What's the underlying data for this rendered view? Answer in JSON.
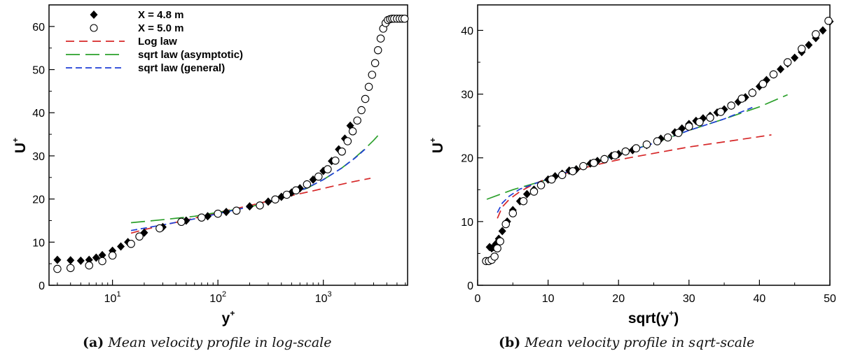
{
  "chart_data": [
    {
      "panel": "a",
      "type": "scatter",
      "x_scale": "log",
      "xlabel": "y",
      "xlabel_sup": "+",
      "ylabel": "U",
      "ylabel_sup": "+",
      "xlim": [
        2.5,
        6300
      ],
      "ylim": [
        0,
        65
      ],
      "xticks": [
        {
          "v": 10,
          "base": "10",
          "exp": "1"
        },
        {
          "v": 100,
          "base": "10",
          "exp": "2"
        },
        {
          "v": 1000,
          "base": "10",
          "exp": "3"
        }
      ],
      "yticks": [
        0,
        10,
        20,
        30,
        40,
        50,
        60
      ],
      "legend_position": "top-left",
      "series": [
        {
          "name": "X = 4.8 m",
          "style": "filled-diamond",
          "color": "#000000",
          "x": [
            3,
            4,
            5,
            6,
            7,
            8,
            10,
            12,
            14,
            20,
            30,
            50,
            80,
            120,
            200,
            300,
            400,
            500,
            600,
            800,
            1000,
            1200,
            1400,
            1600,
            1800
          ],
          "y": [
            5.9,
            5.8,
            5.7,
            5.9,
            6.4,
            7.0,
            8.0,
            9.0,
            10.0,
            12.2,
            13.5,
            15.0,
            16.0,
            17.0,
            18.3,
            19.4,
            20.5,
            21.5,
            22.5,
            24.5,
            26.5,
            28.8,
            31.5,
            34.0,
            37.0
          ]
        },
        {
          "name": "X = 5.0 m",
          "style": "open-circle",
          "color": "#000000",
          "x": [
            3,
            4,
            6,
            8,
            10,
            15,
            18,
            28,
            45,
            70,
            100,
            150,
            250,
            350,
            450,
            550,
            700,
            900,
            1100,
            1300,
            1500,
            1700,
            1900,
            2100,
            2300,
            2500,
            2700,
            2900,
            3100,
            3300,
            3500,
            3700,
            3900,
            4100,
            4300,
            4500,
            4700,
            5000,
            5300,
            5600,
            5900
          ],
          "y": [
            3.8,
            4.0,
            4.6,
            5.6,
            6.9,
            9.6,
            11.3,
            13.2,
            14.7,
            15.7,
            16.6,
            17.3,
            18.5,
            19.9,
            21.0,
            22.0,
            23.4,
            25.2,
            26.9,
            28.9,
            31.0,
            33.4,
            35.7,
            38.2,
            40.6,
            43.2,
            46.0,
            48.8,
            51.5,
            54.5,
            57.2,
            59.5,
            60.8,
            61.5,
            61.7,
            61.8,
            61.8,
            61.8,
            61.8,
            61.8,
            61.8
          ]
        },
        {
          "name": "Log law",
          "style": "dashed",
          "color": "#d62728",
          "x": [
            15,
            20,
            30,
            50,
            80,
            120,
            200,
            300,
            500,
            800,
            1200,
            2000,
            2800
          ],
          "y": [
            12.1,
            12.9,
            13.9,
            15.1,
            16.3,
            17.3,
            18.5,
            19.5,
            20.8,
            21.9,
            22.9,
            24.1,
            24.8
          ]
        },
        {
          "name": "sqrt law (asymptotic)",
          "style": "long-dash",
          "color": "#2ca02c",
          "x": [
            15,
            30,
            60,
            100,
            200,
            300,
            500,
            700,
            1000,
            1500,
            2000,
            2500,
            3000,
            3500
          ],
          "y": [
            14.5,
            15.2,
            16.0,
            16.9,
            18.1,
            19.4,
            21.2,
            22.5,
            24.5,
            27.2,
            29.6,
            31.7,
            33.6,
            35.4
          ]
        },
        {
          "name": "sqrt law (general)",
          "style": "short-dash",
          "color": "#1f3fd6",
          "x": [
            15,
            30,
            60,
            100,
            200,
            300,
            500,
            700,
            1000,
            1500,
            2000,
            2500
          ],
          "y": [
            12.7,
            14.0,
            15.4,
            16.6,
            18.2,
            19.4,
            21.2,
            22.6,
            24.5,
            27.2,
            29.5,
            31.6
          ]
        }
      ]
    },
    {
      "panel": "b",
      "type": "scatter",
      "x_scale": "linear",
      "xlabel": "sqrt(y",
      "xlabel_sup": "+",
      "xlabel_tail": ")",
      "ylabel": "U",
      "ylabel_sup": "+",
      "xlim": [
        0,
        50
      ],
      "ylim": [
        0,
        44
      ],
      "xticks": [
        0,
        10,
        20,
        30,
        40,
        50
      ],
      "yticks": [
        0,
        10,
        20,
        30,
        40
      ],
      "series": [
        {
          "name": "X = 4.8 m",
          "style": "filled-diamond",
          "color": "#000000",
          "x": [
            1.7,
            2.0,
            2.3,
            2.6,
            3.0,
            3.5,
            4.2,
            5,
            6,
            7,
            8,
            9,
            10,
            11,
            12,
            13,
            14,
            15,
            16,
            17,
            18,
            19,
            20,
            22,
            24,
            26,
            28,
            29,
            30,
            31,
            32,
            33,
            34,
            35,
            36,
            37,
            38,
            39,
            40,
            41,
            42,
            43,
            44,
            45,
            46,
            47,
            48,
            49,
            50
          ],
          "y": [
            6.0,
            5.8,
            6.0,
            6.5,
            7.3,
            8.5,
            10.0,
            11.8,
            13.2,
            14.3,
            15.0,
            15.8,
            16.6,
            17.1,
            17.5,
            18.0,
            18.2,
            18.7,
            19.1,
            19.5,
            19.8,
            20.3,
            20.6,
            21.2,
            22.0,
            23.0,
            24.0,
            24.6,
            25.3,
            25.8,
            26.2,
            26.6,
            27.1,
            27.6,
            28.2,
            28.8,
            29.5,
            30.3,
            31.2,
            32.2,
            33.1,
            33.9,
            34.8,
            35.7,
            36.6,
            37.7,
            38.8,
            40.0,
            41.4
          ]
        },
        {
          "name": "X = 5.0 m",
          "style": "open-circle",
          "color": "#000000",
          "x": [
            1.2,
            1.6,
            2.0,
            2.4,
            2.8,
            3.2,
            4.0,
            5.0,
            6.5,
            8,
            9,
            10.5,
            12,
            13.5,
            15,
            16.5,
            18,
            19.5,
            21,
            22.5,
            24,
            25.5,
            27,
            28.5,
            30,
            31.5,
            33,
            34.5,
            36,
            37.5,
            39,
            40.5,
            42,
            44,
            46,
            48,
            49.8
          ],
          "y": [
            3.8,
            3.8,
            4.0,
            4.5,
            5.8,
            6.9,
            9.6,
            11.3,
            13.2,
            14.7,
            15.7,
            16.6,
            17.3,
            17.9,
            18.7,
            19.2,
            19.8,
            20.4,
            21.0,
            21.5,
            22.1,
            22.6,
            23.2,
            23.9,
            24.9,
            25.6,
            26.3,
            27.2,
            28.2,
            29.3,
            30.2,
            31.6,
            33.1,
            35.0,
            37.1,
            39.4,
            41.5
          ]
        },
        {
          "name": "Log law",
          "style": "dashed",
          "color": "#d62728",
          "x": [
            2.8,
            3.5,
            4.5,
            6,
            8,
            10,
            12,
            15,
            18,
            20,
            25,
            30,
            35,
            41.7
          ],
          "y": [
            10.5,
            12.3,
            13.5,
            14.7,
            15.9,
            16.8,
            17.4,
            18.4,
            19.2,
            19.7,
            20.7,
            21.7,
            22.5,
            23.6
          ]
        },
        {
          "name": "sqrt law (asymptotic)",
          "style": "long-dash",
          "color": "#2ca02c",
          "x": [
            1.3,
            5,
            10,
            15,
            20,
            25,
            30,
            35,
            40,
            44
          ],
          "y": [
            13.5,
            15.0,
            16.6,
            18.8,
            20.6,
            22.3,
            24.3,
            26.1,
            28.0,
            29.9
          ]
        },
        {
          "name": "sqrt law (general)",
          "style": "short-dash",
          "color": "#1f3fd6",
          "x": [
            2.8,
            3.5,
            4.5,
            6,
            8,
            10,
            13,
            16,
            20,
            25,
            30,
            35,
            39
          ],
          "y": [
            11.4,
            12.9,
            14.0,
            15.1,
            15.9,
            16.7,
            17.9,
            19.0,
            20.5,
            22.3,
            24.3,
            26.1,
            27.9
          ]
        }
      ]
    }
  ],
  "captions": [
    {
      "tag": "(a)",
      "text": "Mean velocity profile in log-scale"
    },
    {
      "tag": "(b)",
      "text": "Mean velocity profile in sqrt-scale"
    }
  ]
}
